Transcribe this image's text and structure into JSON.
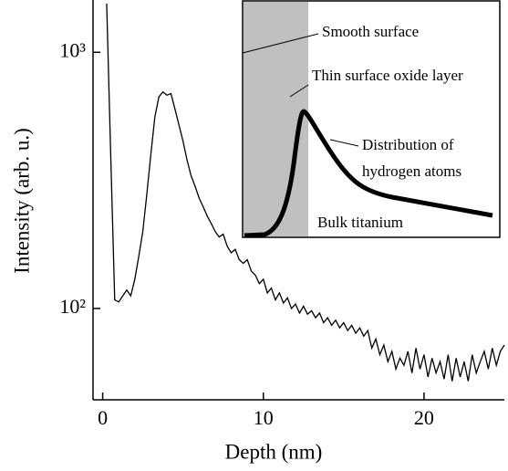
{
  "chart_data": {
    "type": "line",
    "xlabel": "Depth (nm)",
    "ylabel": "Intensity (arb. u.)",
    "xlim": [
      -0.6,
      25.0
    ],
    "xticks": [
      0,
      10,
      20
    ],
    "ylim": [
      44,
      1600
    ],
    "yticks": [
      {
        "value": 100,
        "label": "10²"
      },
      {
        "value": 1000,
        "label": "10³"
      }
    ],
    "ylog": true,
    "series": [
      {
        "color": "#000000",
        "x": [
          0.25,
          0.5,
          0.75,
          1.0,
          1.25,
          1.5,
          1.75,
          2.0,
          2.25,
          2.5,
          2.75,
          3.0,
          3.25,
          3.5,
          3.75,
          4.0,
          4.25,
          4.5,
          4.75,
          5.0,
          5.25,
          5.5,
          5.75,
          6.0,
          6.25,
          6.5,
          6.75,
          7.0,
          7.25,
          7.5,
          7.75,
          8.0,
          8.25,
          8.5,
          8.75,
          9.0,
          9.25,
          9.5,
          9.75,
          10.0,
          10.25,
          10.5,
          10.75,
          11.0,
          11.25,
          11.5,
          11.75,
          12.0,
          12.25,
          12.5,
          12.75,
          13.0,
          13.25,
          13.5,
          13.75,
          14.0,
          14.25,
          14.5,
          14.75,
          15.0,
          15.25,
          15.5,
          15.75,
          16.0,
          16.25,
          16.5,
          16.75,
          17.0,
          17.25,
          17.5,
          17.75,
          18.0,
          18.25,
          18.5,
          18.75,
          19.0,
          19.25,
          19.5,
          19.75,
          20.0,
          20.25,
          20.5,
          20.75,
          21.0,
          21.25,
          21.5,
          21.75,
          22.0,
          22.25,
          22.5,
          22.75,
          23.0,
          23.25,
          23.5,
          23.75,
          24.0,
          24.25,
          24.5,
          24.75,
          25.0
        ],
        "values": [
          1550,
          400,
          108,
          106,
          112,
          118,
          112,
          130,
          160,
          200,
          280,
          400,
          560,
          670,
          700,
          680,
          690,
          600,
          520,
          450,
          380,
          330,
          300,
          270,
          250,
          230,
          215,
          200,
          190,
          195,
          175,
          165,
          170,
          155,
          150,
          155,
          140,
          135,
          125,
          130,
          115,
          120,
          108,
          115,
          105,
          110,
          100,
          104,
          96,
          102,
          95,
          98,
          92,
          96,
          88,
          92,
          86,
          90,
          84,
          88,
          82,
          86,
          80,
          84,
          78,
          82,
          70,
          76,
          66,
          72,
          62,
          68,
          58,
          64,
          60,
          68,
          56,
          70,
          58,
          66,
          54,
          64,
          56,
          62,
          53,
          66,
          52,
          64,
          54,
          62,
          52,
          66,
          56,
          62,
          68,
          58,
          70,
          60,
          68,
          72
        ]
      }
    ],
    "inset": {
      "labels": [
        "Smooth surface",
        "Thin surface oxide layer",
        "Distribution of",
        "hydrogen atoms",
        "Bulk titanium"
      ]
    }
  }
}
